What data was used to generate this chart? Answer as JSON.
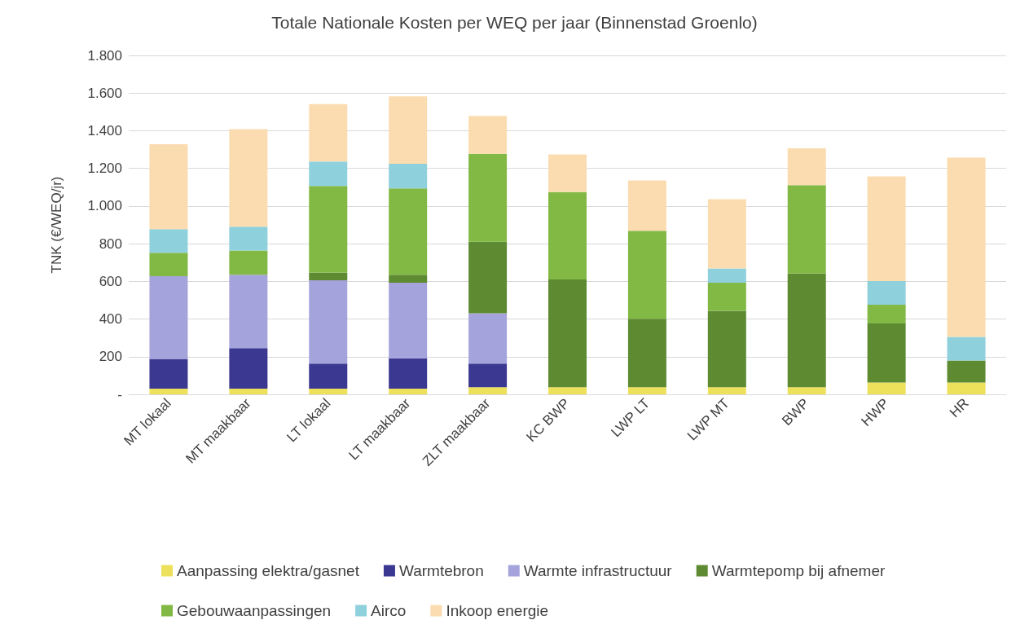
{
  "chart_data": {
    "type": "bar",
    "title": "Totale Nationale Kosten per WEQ per jaar (Binnenstad Groenlo)",
    "ylabel": "TNK (€/WEQ/jr)",
    "stacked": true,
    "grid": "y",
    "legend": "bottom",
    "categories": [
      "MT lokaal",
      "MT maakbaar",
      "LT lokaal",
      "LT maakbaar",
      "ZLT maakbaar",
      "KC BWP",
      "LWP LT",
      "LWP MT",
      "BWP",
      "HWP",
      "HR"
    ],
    "ylim": [
      0,
      1800
    ],
    "yticks": [
      {
        "value": 0,
        "label": "-"
      },
      {
        "value": 200,
        "label": "200"
      },
      {
        "value": 400,
        "label": "400"
      },
      {
        "value": 600,
        "label": "600"
      },
      {
        "value": 800,
        "label": "800"
      },
      {
        "value": 1000,
        "label": "1.000"
      },
      {
        "value": 1200,
        "label": "1.200"
      },
      {
        "value": 1400,
        "label": "1.400"
      },
      {
        "value": 1600,
        "label": "1.600"
      },
      {
        "value": 1800,
        "label": "1.800"
      }
    ],
    "series": [
      {
        "name": "Aanpassing elektra/gasnet",
        "color": "#ede05a",
        "values": [
          30,
          30,
          30,
          30,
          38,
          38,
          38,
          38,
          38,
          63,
          63
        ]
      },
      {
        "name": "Warmtebron",
        "color": "#3a3890",
        "values": [
          158,
          216,
          133,
          162,
          125,
          0,
          0,
          0,
          0,
          0,
          0
        ]
      },
      {
        "name": "Warmte infrastructuur",
        "color": "#a5a3dc",
        "values": [
          439,
          389,
          443,
          401,
          267,
          0,
          0,
          0,
          0,
          0,
          0
        ]
      },
      {
        "name": "Warmtepomp bij afnemer",
        "color": "#5e8a32",
        "values": [
          0,
          0,
          41,
          42,
          380,
          572,
          363,
          405,
          605,
          313,
          117
        ]
      },
      {
        "name": "Gebouwaanpassingen",
        "color": "#82b944",
        "values": [
          125,
          129,
          460,
          459,
          468,
          464,
          468,
          150,
          468,
          100,
          0
        ]
      },
      {
        "name": "Airco",
        "color": "#8fd0dd",
        "values": [
          125,
          126,
          129,
          130,
          0,
          0,
          0,
          75,
          0,
          125,
          125
        ]
      },
      {
        "name": "Inkoop energie",
        "color": "#fbdcb0",
        "values": [
          451,
          518,
          305,
          359,
          201,
          200,
          267,
          368,
          196,
          556,
          952
        ]
      }
    ]
  }
}
